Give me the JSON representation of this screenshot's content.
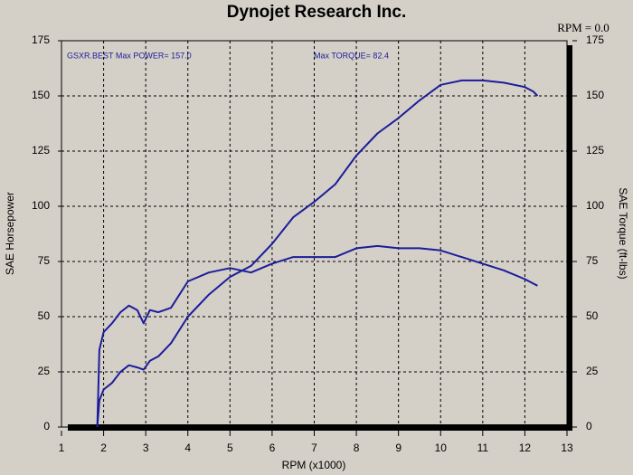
{
  "chart_data": {
    "type": "line",
    "title": "Dynojet Research Inc.",
    "rpm_readout": "RPM = 0.0",
    "annotations": [
      "GSXR.BEST  Max POWER= 157.0",
      "Max TORQUE= 82.4"
    ],
    "x_label": "RPM (x1000)",
    "y_label": "SAE Horsepower",
    "y2_label": "SAE Torque (ft-lbs)",
    "x": [
      1.85,
      1.9,
      2.0,
      2.2,
      2.4,
      2.6,
      2.8,
      2.95,
      3.1,
      3.3,
      3.6,
      4.0,
      4.5,
      5.0,
      5.5,
      6.0,
      6.5,
      7.0,
      7.5,
      8.0,
      8.5,
      9.0,
      9.5,
      10.0,
      10.5,
      11.0,
      11.5,
      12.0,
      12.2,
      12.3
    ],
    "series": [
      {
        "name": "SAE Horsepower",
        "color": "#1c1c9c",
        "values": [
          0,
          12,
          17,
          20,
          25,
          28,
          27,
          26,
          30,
          32,
          38,
          50,
          60,
          68,
          73,
          83,
          95,
          102,
          110,
          123,
          133,
          140,
          148,
          155,
          157,
          157,
          156,
          154,
          152,
          150
        ]
      },
      {
        "name": "SAE Torque",
        "color": "#1c1c9c",
        "axis": "y2",
        "values": [
          0,
          35,
          43,
          47,
          52,
          55,
          53,
          47,
          53,
          52,
          54,
          66,
          70,
          72,
          70,
          74,
          77,
          77,
          77,
          81,
          82,
          81,
          81,
          80,
          77,
          74,
          71,
          67,
          65,
          64
        ]
      }
    ],
    "xlim": [
      1,
      13
    ],
    "xticks": [
      1,
      2,
      3,
      4,
      5,
      6,
      7,
      8,
      9,
      10,
      11,
      12,
      13
    ],
    "ylim": [
      0,
      175
    ],
    "yticks": [
      0,
      25,
      50,
      75,
      100,
      125,
      150,
      175
    ],
    "y2lim": [
      0,
      175
    ],
    "y2ticks": [
      0,
      25,
      50,
      75,
      100,
      125,
      150,
      175
    ],
    "grid": true
  }
}
